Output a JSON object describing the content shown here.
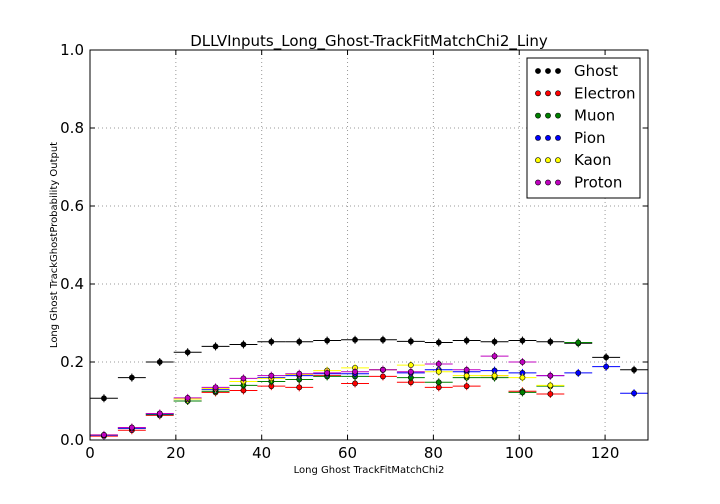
{
  "chart_data": {
    "type": "scatter",
    "title": "DLLVInputs_Long_Ghost-TrackFitMatchChi2_Liny",
    "xlabel": "Long Ghost TrackFitMatchChi2",
    "ylabel": "Long Ghost TrackGhostProbability Output",
    "xlim": [
      0,
      130
    ],
    "ylim": [
      0,
      1.0
    ],
    "xticks": [
      "0",
      "20",
      "40",
      "60",
      "80",
      "100",
      "120"
    ],
    "yticks": [
      "0.0",
      "0.2",
      "0.4",
      "0.6",
      "0.8",
      "1.0"
    ],
    "grid": true,
    "legend_position": "top-right",
    "x_bin_width": 6.5,
    "x": [
      3.25,
      9.75,
      16.25,
      22.75,
      29.25,
      35.75,
      42.25,
      48.75,
      55.25,
      61.75,
      68.25,
      74.75,
      81.25,
      87.75,
      94.25,
      100.75,
      107.25,
      113.75,
      120.25,
      126.75
    ],
    "series": [
      {
        "name": "Ghost",
        "color": "#000000",
        "values": [
          0.107,
          0.16,
          0.2,
          0.225,
          0.24,
          0.245,
          0.252,
          0.252,
          0.255,
          0.257,
          0.257,
          0.253,
          0.25,
          0.255,
          0.252,
          0.255,
          0.252,
          0.248,
          0.212,
          0.18
        ]
      },
      {
        "name": "Electron",
        "color": "#ff0000",
        "values": [
          0.01,
          0.025,
          0.063,
          0.1,
          0.122,
          0.127,
          0.138,
          0.135,
          0.165,
          0.145,
          0.163,
          0.148,
          0.135,
          0.138,
          0.165,
          0.125,
          0.118,
          null,
          null,
          null
        ]
      },
      {
        "name": "Muon",
        "color": "#008000",
        "values": [
          0.012,
          0.03,
          0.065,
          0.1,
          0.125,
          0.14,
          0.15,
          0.155,
          0.163,
          0.163,
          0.18,
          0.16,
          0.148,
          0.16,
          0.16,
          0.122,
          0.138,
          0.25,
          null,
          null
        ]
      },
      {
        "name": "Pion",
        "color": "#0000ff",
        "values": [
          0.012,
          0.03,
          0.067,
          0.105,
          0.13,
          0.15,
          0.16,
          0.165,
          0.17,
          0.17,
          0.18,
          0.172,
          0.18,
          0.175,
          0.178,
          0.172,
          0.165,
          0.172,
          0.188,
          0.12
        ]
      },
      {
        "name": "Kaon",
        "color": "#ffff00",
        "values": [
          0.013,
          0.032,
          0.068,
          0.105,
          0.132,
          0.15,
          0.158,
          0.168,
          0.178,
          0.185,
          0.18,
          0.192,
          0.175,
          0.165,
          0.165,
          0.16,
          0.14,
          null,
          null,
          null
        ]
      },
      {
        "name": "Proton",
        "color": "#bf00bf",
        "values": [
          0.013,
          0.032,
          0.068,
          0.108,
          0.135,
          0.158,
          0.165,
          0.17,
          0.172,
          0.175,
          0.18,
          0.175,
          0.195,
          0.18,
          0.215,
          0.2,
          0.165,
          null,
          null,
          null
        ]
      }
    ]
  }
}
